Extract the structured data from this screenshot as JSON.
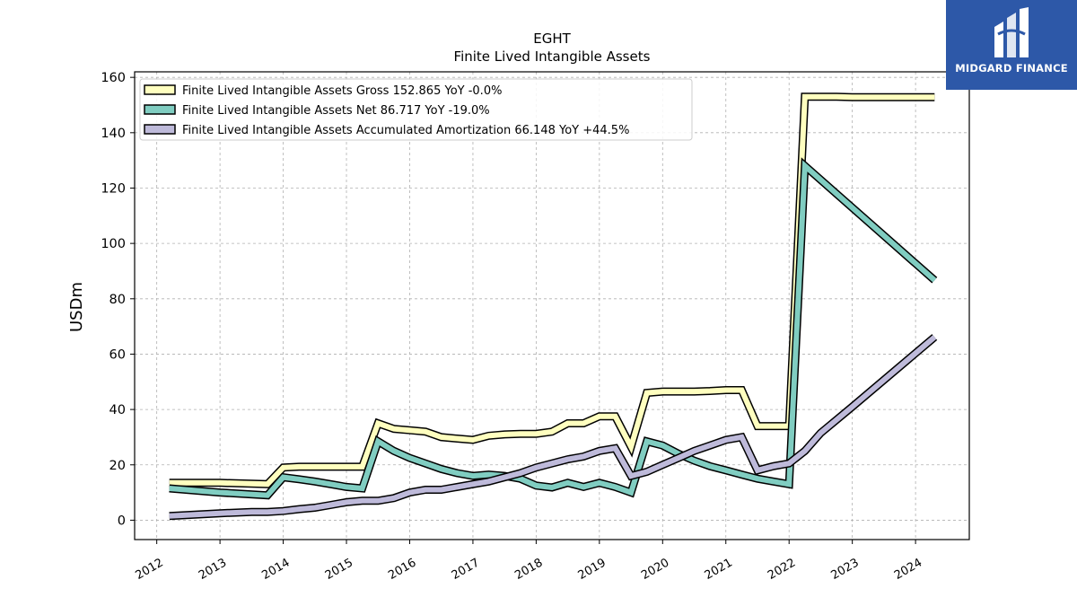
{
  "chart_data": {
    "type": "line",
    "title": "EGHT",
    "subtitle": "Finite Lived Intangible Assets",
    "ylabel": "USDm",
    "xlabel": "",
    "ylim": [
      -7,
      162
    ],
    "yticks": [
      0,
      20,
      40,
      60,
      80,
      100,
      120,
      140,
      160
    ],
    "xticks": [
      "2012",
      "2013",
      "2014",
      "2015",
      "2016",
      "2017",
      "2018",
      "2019",
      "2020",
      "2021",
      "2022",
      "2023",
      "2024"
    ],
    "xlim": [
      2011.65,
      2024.85
    ],
    "grid": true,
    "legend_position": "top-left",
    "series": [
      {
        "name": "Finite Lived Intangible Assets Gross",
        "legend": "Finite Lived Intangible Assets Gross  152.865 YoY -0.0%",
        "color": "#ffffbf",
        "x": [
          2012.2,
          2013.0,
          2013.75,
          2014.0,
          2014.25,
          2014.5,
          2014.75,
          2015.0,
          2015.25,
          2015.5,
          2015.75,
          2016.0,
          2016.25,
          2016.5,
          2016.75,
          2017.0,
          2017.25,
          2017.5,
          2017.75,
          2018.0,
          2018.25,
          2018.5,
          2018.75,
          2019.0,
          2019.25,
          2019.5,
          2019.75,
          2020.0,
          2020.25,
          2020.5,
          2020.75,
          2021.0,
          2021.25,
          2021.5,
          2021.75,
          2022.0,
          2022.25,
          2022.5,
          2022.75,
          2023.0,
          2024.3
        ],
        "y": [
          13.5,
          13.5,
          13.0,
          19.0,
          19.3,
          19.3,
          19.3,
          19.3,
          19.3,
          35.0,
          33.0,
          32.5,
          32.0,
          30.0,
          29.5,
          29.0,
          30.5,
          31.0,
          31.2,
          31.2,
          32.0,
          35.0,
          35.0,
          37.5,
          37.5,
          26.5,
          46.0,
          46.5,
          46.5,
          46.5,
          46.7,
          47.0,
          47.0,
          34.0,
          34.0,
          34.0,
          153.0,
          153.0,
          153.0,
          152.865,
          152.865
        ]
      },
      {
        "name": "Finite Lived Intangible Assets Net",
        "legend": "Finite Lived Intangible Assets Net  86.717 YoY -19.0%",
        "color": "#80cdc1",
        "x": [
          2012.2,
          2013.0,
          2013.75,
          2014.0,
          2014.25,
          2014.5,
          2014.75,
          2015.0,
          2015.25,
          2015.5,
          2015.75,
          2016.0,
          2016.25,
          2016.5,
          2016.75,
          2017.0,
          2017.25,
          2017.5,
          2017.75,
          2018.0,
          2018.25,
          2018.5,
          2018.75,
          2019.0,
          2019.25,
          2019.5,
          2019.75,
          2020.0,
          2020.25,
          2020.5,
          2020.75,
          2021.0,
          2021.25,
          2021.5,
          2021.75,
          2022.0,
          2022.25,
          2024.3
        ],
        "y": [
          11.5,
          10.0,
          9.0,
          15.5,
          14.8,
          14.0,
          13.0,
          12.0,
          11.5,
          28.5,
          25.0,
          22.5,
          20.5,
          18.5,
          17.0,
          16.0,
          16.5,
          16.0,
          15.0,
          12.5,
          11.8,
          13.5,
          12.0,
          13.5,
          12.0,
          10.0,
          28.5,
          27.0,
          24.0,
          21.5,
          19.5,
          18.0,
          16.5,
          15.0,
          14.0,
          13.0,
          128.0,
          86.717
        ]
      },
      {
        "name": "Finite Lived Intangible Assets Accumulated Amortization",
        "legend": "Finite Lived Intangible Assets Accumulated Amortization  66.148 YoY +44.5%",
        "color": "#bebada",
        "x": [
          2012.2,
          2013.0,
          2013.5,
          2013.75,
          2014.0,
          2014.25,
          2014.5,
          2014.75,
          2015.0,
          2015.25,
          2015.5,
          2015.75,
          2016.0,
          2016.25,
          2016.5,
          2016.75,
          2017.0,
          2017.25,
          2017.5,
          2017.75,
          2018.0,
          2018.25,
          2018.5,
          2018.75,
          2019.0,
          2019.25,
          2019.5,
          2019.75,
          2020.0,
          2020.25,
          2020.5,
          2020.75,
          2021.0,
          2021.25,
          2021.5,
          2021.75,
          2022.0,
          2022.25,
          2022.5,
          2023.0,
          2024.3
        ],
        "y": [
          1.5,
          2.5,
          3.0,
          3.0,
          3.3,
          4.0,
          4.5,
          5.5,
          6.5,
          7.0,
          7.0,
          8.0,
          10.0,
          11.0,
          11.0,
          12.0,
          13.0,
          14.0,
          15.5,
          17.0,
          19.0,
          20.5,
          22.0,
          23.0,
          25.0,
          26.0,
          16.0,
          17.5,
          20.0,
          22.5,
          25.0,
          27.0,
          29.0,
          30.0,
          18.0,
          19.5,
          20.5,
          25.0,
          31.5,
          41.0,
          66.148
        ]
      }
    ]
  },
  "logo": {
    "text": "MIDGARD FINANCE"
  }
}
